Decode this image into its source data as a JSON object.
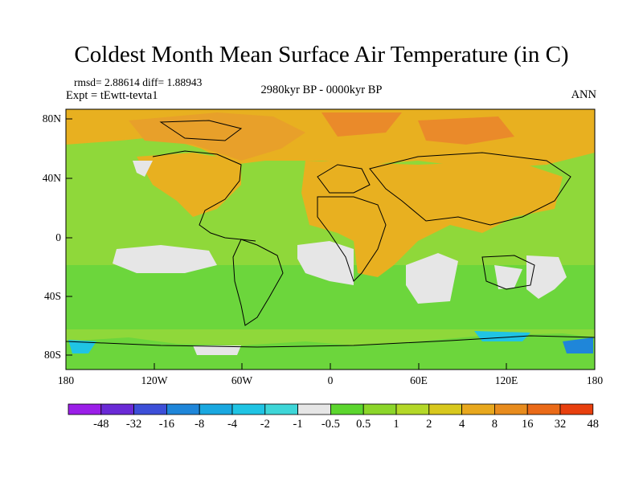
{
  "title": "Coldest Month Mean Surface Air Temperature (in C)",
  "stats": "rmsd= 2.88614 diff= 1.88943",
  "expt": "Expt = tEwtt-tevta1",
  "period": "2980kyr BP - 0000kyr BP",
  "season": "ANN",
  "y_axis": [
    "80N",
    "40N",
    "0",
    "40S",
    "80S"
  ],
  "x_axis": [
    "180",
    "120W",
    "60W",
    "0",
    "60E",
    "120E",
    "180"
  ],
  "colorbar": {
    "colors": [
      "#9b1fe8",
      "#6a2ad6",
      "#3d4fd8",
      "#1f86d9",
      "#1aa8e0",
      "#20c4e4",
      "#3ed6d8",
      "#e6e6e6",
      "#5cd62e",
      "#8cd62a",
      "#b4d828",
      "#d8c81e",
      "#e8a81e",
      "#e88c1e",
      "#ea6a18",
      "#e8400e"
    ],
    "labels": [
      "-48",
      "-32",
      "-16",
      "-8",
      "-4",
      "-2",
      "-1",
      "-0.5",
      "0.5",
      "1",
      "2",
      "4",
      "8",
      "16",
      "32",
      "48"
    ]
  },
  "palette": {
    "ocean": "#8fd83a",
    "sea_green": "#6cd63c",
    "warm": "#e8b020",
    "warmer": "#e8a02a",
    "hot": "#ea8a2a",
    "neutral": "#e6e6e6",
    "cold": "#20c4e4",
    "colder": "#1f86d9",
    "coast": "#000000"
  }
}
